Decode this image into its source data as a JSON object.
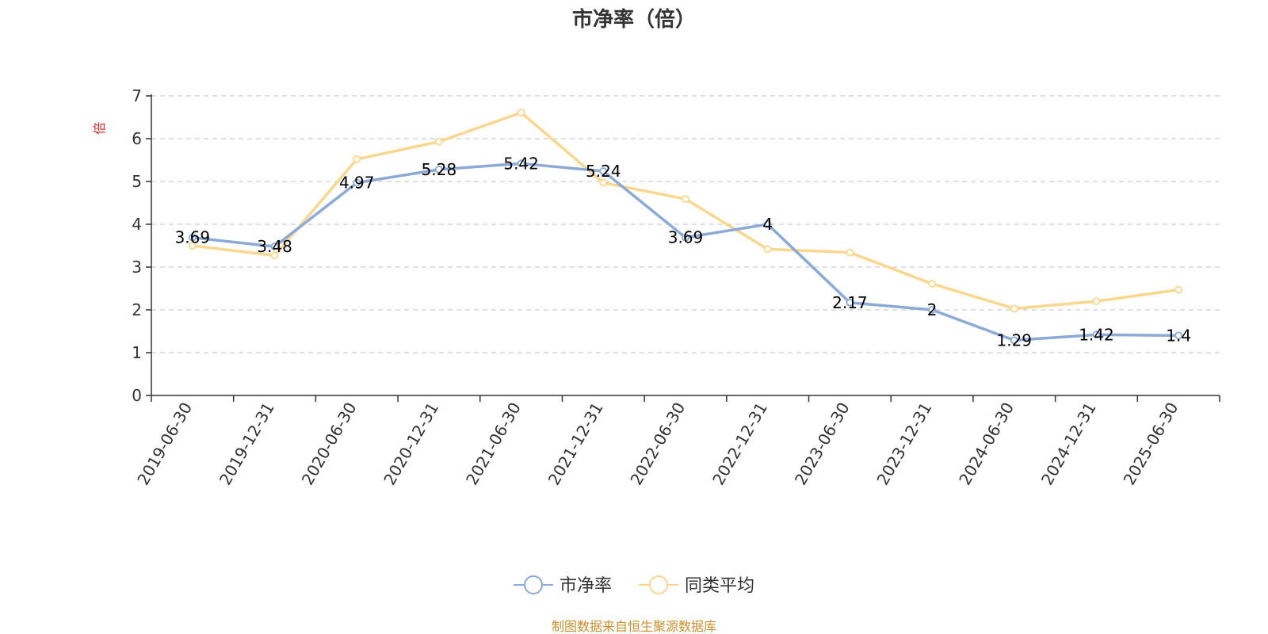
{
  "chart_data": {
    "type": "line",
    "title": "市净率（倍）",
    "ylabel": "倍",
    "ylim": [
      0,
      7
    ],
    "yticks": [
      "0",
      "1",
      "2",
      "3",
      "4",
      "5",
      "6",
      "7"
    ],
    "categories": [
      "2019-06-30",
      "2019-12-31",
      "2020-06-30",
      "2020-12-31",
      "2021-06-30",
      "2021-12-31",
      "2022-06-30",
      "2022-12-31",
      "2023-06-30",
      "2023-12-31",
      "2024-06-30",
      "2024-12-31",
      "2025-06-30"
    ],
    "series": [
      {
        "name": "市净率",
        "color": "#8caad6",
        "values": [
          3.69,
          3.48,
          4.97,
          5.28,
          5.42,
          5.24,
          3.69,
          4,
          2.17,
          2,
          1.29,
          1.42,
          1.4
        ],
        "labels": [
          "3.69",
          "3.48",
          "4.97",
          "5.28",
          "5.42",
          "5.24",
          "3.69",
          "4",
          "2.17",
          "2",
          "1.29",
          "1.42",
          "1.4"
        ]
      },
      {
        "name": "同类平均",
        "color": "#fad78f",
        "values": [
          3.5,
          3.27,
          5.52,
          5.93,
          6.61,
          4.97,
          4.59,
          3.42,
          3.34,
          2.61,
          2.03,
          2.2,
          2.47
        ]
      }
    ],
    "grid": true,
    "legend_position": "bottom-center"
  },
  "source_note": "制图数据来自恒生聚源数据库",
  "colors": {
    "unit_label": "#e0262b",
    "source_note": "#c8912f",
    "grid": "#cccccc",
    "axis": "#333333"
  }
}
